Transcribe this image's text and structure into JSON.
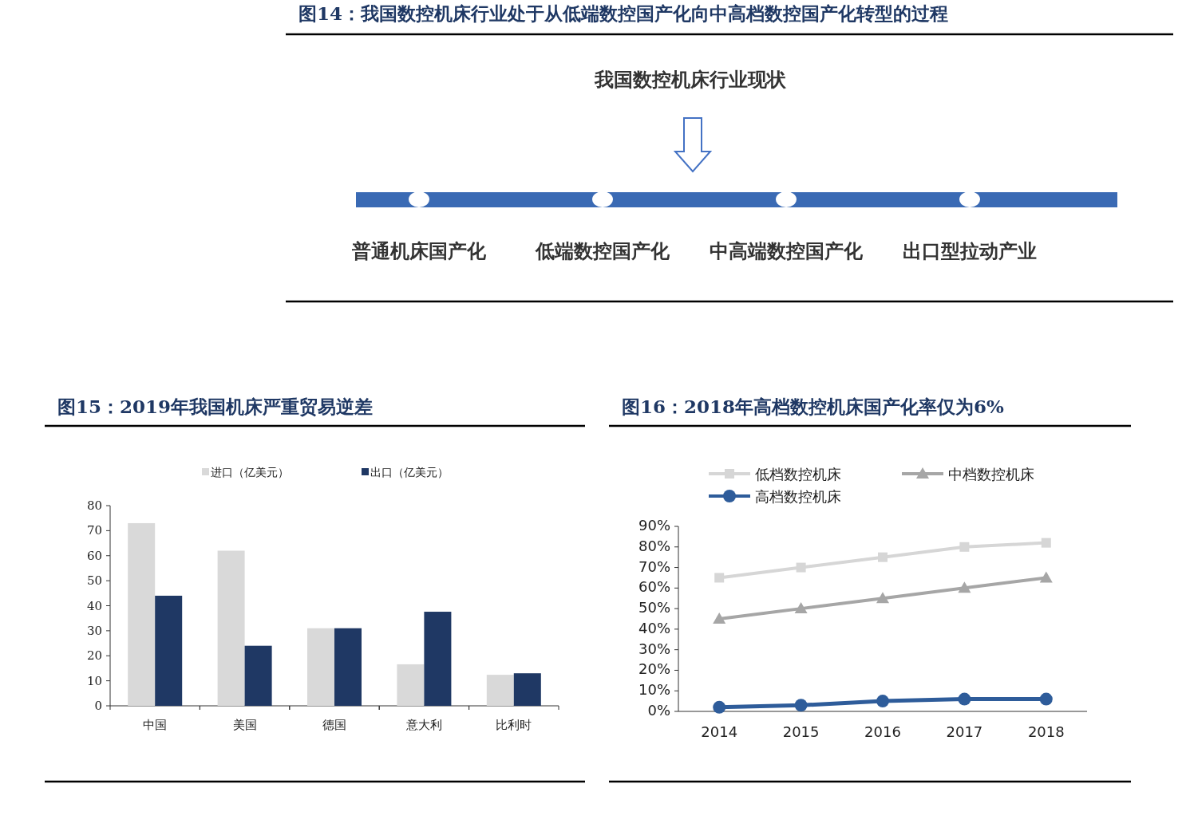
{
  "chart_data": [
    {
      "type": "other",
      "title": "图14：我国数控机床行业处于从低端数控国产化向中高档数控国产化转型的过程",
      "subtitle": "我国数控机床行业现状",
      "annotations": [
        "普通机床国产化",
        "低端数控国产化",
        "中高端数控国产化",
        "出口型拉动产业"
      ]
    },
    {
      "type": "bar",
      "title": "图15：2019年我国机床严重贸易逆差",
      "categories": [
        "中国",
        "美国",
        "德国",
        "意大利",
        "比利时"
      ],
      "series": [
        {
          "name": "进口（亿美元）",
          "color": "#d9d9d9",
          "values": [
            73,
            62,
            31,
            16.6,
            12.4
          ]
        },
        {
          "name": "出口（亿美元）",
          "color": "#1f3864",
          "values": [
            44,
            24,
            31,
            37.6,
            13
          ]
        }
      ],
      "ylim": [
        0,
        80
      ],
      "yticks": [
        0,
        10,
        20,
        30,
        40,
        50,
        60,
        70,
        80
      ],
      "legend": "top",
      "grid": false
    },
    {
      "type": "line",
      "title": "图16：2018年高档数控机床国产化率仅为6%",
      "categories": [
        "2014",
        "2015",
        "2016",
        "2017",
        "2018"
      ],
      "series": [
        {
          "name": "低档数控机床",
          "color": "#d6d6d6",
          "marker": "square",
          "values": [
            65,
            70,
            75,
            80,
            82
          ]
        },
        {
          "name": "中档数控机床",
          "color": "#a6a6a6",
          "marker": "triangle",
          "values": [
            45,
            50,
            55,
            60,
            65
          ]
        },
        {
          "name": "高档数控机床",
          "color": "#2e5c9a",
          "marker": "circle",
          "values": [
            2,
            3,
            5,
            6,
            6
          ]
        }
      ],
      "ylim": [
        0,
        90
      ],
      "yticks": [
        {
          "value": 0,
          "label": "0%"
        },
        {
          "value": 10,
          "label": "10%"
        },
        {
          "value": 20,
          "label": "20%"
        },
        {
          "value": 30,
          "label": "30%"
        },
        {
          "value": 40,
          "label": "40%"
        },
        {
          "value": 50,
          "label": "50%"
        },
        {
          "value": 60,
          "label": "60%"
        },
        {
          "value": 70,
          "label": "70%"
        },
        {
          "value": 80,
          "label": "80%"
        },
        {
          "value": 90,
          "label": "90%"
        }
      ],
      "legend": "top",
      "grid": false
    }
  ]
}
